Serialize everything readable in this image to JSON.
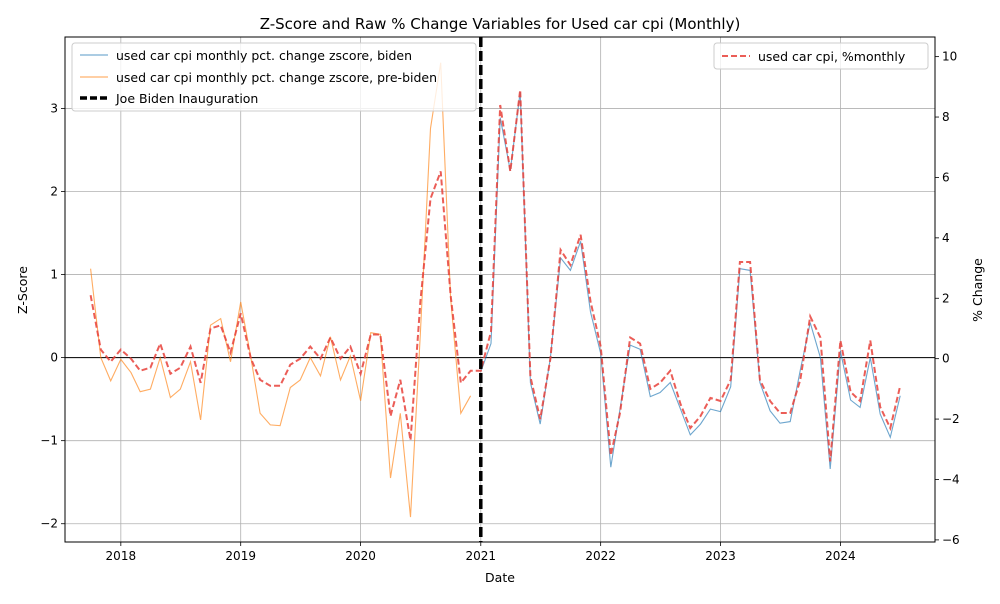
{
  "chart_data": {
    "type": "line",
    "title": "Z-Score and Raw % Change Variables for Used car cpi (Monthly)",
    "xlabel": "Date",
    "ylabel_left": "Z-Score",
    "ylabel_right": "% Change",
    "x_range": [
      "2017-07-15",
      "2024-10-15"
    ],
    "ylim_left": [
      -2.22,
      3.86
    ],
    "ylim_right": [
      -6.07,
      10.65
    ],
    "x_ticks": [
      "2018",
      "2019",
      "2020",
      "2021",
      "2022",
      "2023",
      "2024"
    ],
    "y_ticks_left": [
      -2,
      -1,
      0,
      1,
      2,
      3
    ],
    "y_ticks_right": [
      -6,
      -4,
      -2,
      0,
      2,
      4,
      6,
      8,
      10
    ],
    "grid": true,
    "zero_line": 0,
    "event": {
      "date": "2021-01-01",
      "label": "Joe Biden Inauguration"
    },
    "legend_left": [
      "used car cpi monthly pct. change zscore, biden",
      "used car cpi monthly pct. change zscore, pre-biden",
      "Joe Biden Inauguration"
    ],
    "legend_right": [
      "used car cpi, %monthly"
    ],
    "colors": {
      "biden": "#1f77b4",
      "pre_biden": "#ff7f0e",
      "pct": "#e8413a",
      "event": "#000000"
    },
    "series": [
      {
        "name": "used car cpi monthly pct. change zscore, pre-biden",
        "axis": "left",
        "x": [
          "2017-10",
          "2017-11",
          "2017-12",
          "2018-01",
          "2018-02",
          "2018-03",
          "2018-04",
          "2018-05",
          "2018-06",
          "2018-07",
          "2018-08",
          "2018-09",
          "2018-10",
          "2018-11",
          "2018-12",
          "2019-01",
          "2019-02",
          "2019-03",
          "2019-04",
          "2019-05",
          "2019-06",
          "2019-07",
          "2019-08",
          "2019-09",
          "2019-10",
          "2019-11",
          "2019-12",
          "2020-01",
          "2020-02",
          "2020-03",
          "2020-04",
          "2020-05",
          "2020-06",
          "2020-07",
          "2020-08",
          "2020-09",
          "2020-10",
          "2020-11",
          "2020-12"
        ],
        "values": [
          1.07,
          0.0,
          -0.28,
          -0.02,
          -0.18,
          -0.41,
          -0.38,
          0.0,
          -0.48,
          -0.38,
          -0.05,
          -0.75,
          0.39,
          0.47,
          -0.05,
          0.67,
          0.0,
          -0.67,
          -0.81,
          -0.82,
          -0.36,
          -0.27,
          0.0,
          -0.22,
          0.25,
          -0.27,
          0.02,
          -0.52,
          0.3,
          0.28,
          -1.45,
          -0.67,
          -1.92,
          0.3,
          2.76,
          3.55,
          0.72,
          -0.67,
          -0.46
        ]
      },
      {
        "name": "used car cpi monthly pct. change zscore, biden",
        "axis": "left",
        "x": [
          "2021-01",
          "2021-02",
          "2021-03",
          "2021-04",
          "2021-05",
          "2021-06",
          "2021-07",
          "2021-08",
          "2021-09",
          "2021-10",
          "2021-11",
          "2021-12",
          "2022-01",
          "2022-02",
          "2022-03",
          "2022-04",
          "2022-05",
          "2022-06",
          "2022-07",
          "2022-08",
          "2022-09",
          "2022-10",
          "2022-11",
          "2022-12",
          "2023-01",
          "2023-02",
          "2023-03",
          "2023-04",
          "2023-05",
          "2023-06",
          "2023-07",
          "2023-08",
          "2023-09",
          "2023-10",
          "2023-11",
          "2023-12",
          "2024-01",
          "2024-02",
          "2024-03",
          "2024-04",
          "2024-05",
          "2024-06",
          "2024-07"
        ],
        "values": [
          -0.17,
          0.17,
          2.89,
          2.25,
          3.2,
          -0.3,
          -0.8,
          0.0,
          1.2,
          1.05,
          1.4,
          0.55,
          0.05,
          -1.32,
          -0.62,
          0.15,
          0.1,
          -0.47,
          -0.42,
          -0.3,
          -0.62,
          -0.93,
          -0.8,
          -0.62,
          -0.65,
          -0.35,
          1.07,
          1.05,
          -0.3,
          -0.64,
          -0.79,
          -0.77,
          -0.15,
          0.42,
          0.0,
          -1.34,
          0.08,
          -0.51,
          -0.6,
          0.0,
          -0.68,
          -0.96,
          -0.46
        ]
      },
      {
        "name": "used car cpi, %monthly",
        "axis": "right",
        "x": [
          "2017-10",
          "2017-11",
          "2017-12",
          "2018-01",
          "2018-02",
          "2018-03",
          "2018-04",
          "2018-05",
          "2018-06",
          "2018-07",
          "2018-08",
          "2018-09",
          "2018-10",
          "2018-11",
          "2018-12",
          "2019-01",
          "2019-02",
          "2019-03",
          "2019-04",
          "2019-05",
          "2019-06",
          "2019-07",
          "2019-08",
          "2019-09",
          "2019-10",
          "2019-11",
          "2019-12",
          "2020-01",
          "2020-02",
          "2020-03",
          "2020-04",
          "2020-05",
          "2020-06",
          "2020-07",
          "2020-08",
          "2020-09",
          "2020-10",
          "2020-11",
          "2020-12",
          "2021-01",
          "2021-02",
          "2021-03",
          "2021-04",
          "2021-05",
          "2021-06",
          "2021-07",
          "2021-08",
          "2021-09",
          "2021-10",
          "2021-11",
          "2021-12",
          "2022-01",
          "2022-02",
          "2022-03",
          "2022-04",
          "2022-05",
          "2022-06",
          "2022-07",
          "2022-08",
          "2022-09",
          "2022-10",
          "2022-11",
          "2022-12",
          "2023-01",
          "2023-02",
          "2023-03",
          "2023-04",
          "2023-05",
          "2023-06",
          "2023-07",
          "2023-08",
          "2023-09",
          "2023-10",
          "2023-11",
          "2023-12",
          "2024-01",
          "2024-02",
          "2024-03",
          "2024-04",
          "2024-05",
          "2024-06",
          "2024-07"
        ],
        "values": [
          2.1,
          0.3,
          -0.1,
          0.3,
          0.0,
          -0.4,
          -0.3,
          0.5,
          -0.5,
          -0.3,
          0.4,
          -0.8,
          1.0,
          1.1,
          0.2,
          1.5,
          0.0,
          -0.7,
          -0.9,
          -0.9,
          -0.2,
          0.0,
          0.4,
          0.0,
          0.7,
          0.0,
          0.4,
          -0.5,
          0.8,
          0.8,
          -1.9,
          -0.7,
          -2.7,
          1.9,
          5.3,
          6.2,
          2.1,
          -0.8,
          -0.4,
          -0.4,
          0.9,
          8.4,
          6.2,
          8.9,
          -0.6,
          -2.0,
          0.0,
          3.6,
          3.1,
          4.1,
          1.9,
          0.4,
          -3.2,
          -1.8,
          0.7,
          0.5,
          -1.0,
          -0.8,
          -0.4,
          -1.5,
          -2.3,
          -1.9,
          -1.3,
          -1.4,
          -0.7,
          3.2,
          3.2,
          -0.7,
          -1.4,
          -1.8,
          -1.8,
          -0.7,
          1.4,
          0.7,
          -3.4,
          0.6,
          -1.1,
          -1.4,
          0.6,
          -1.6,
          -2.3,
          -0.9
        ]
      }
    ]
  }
}
